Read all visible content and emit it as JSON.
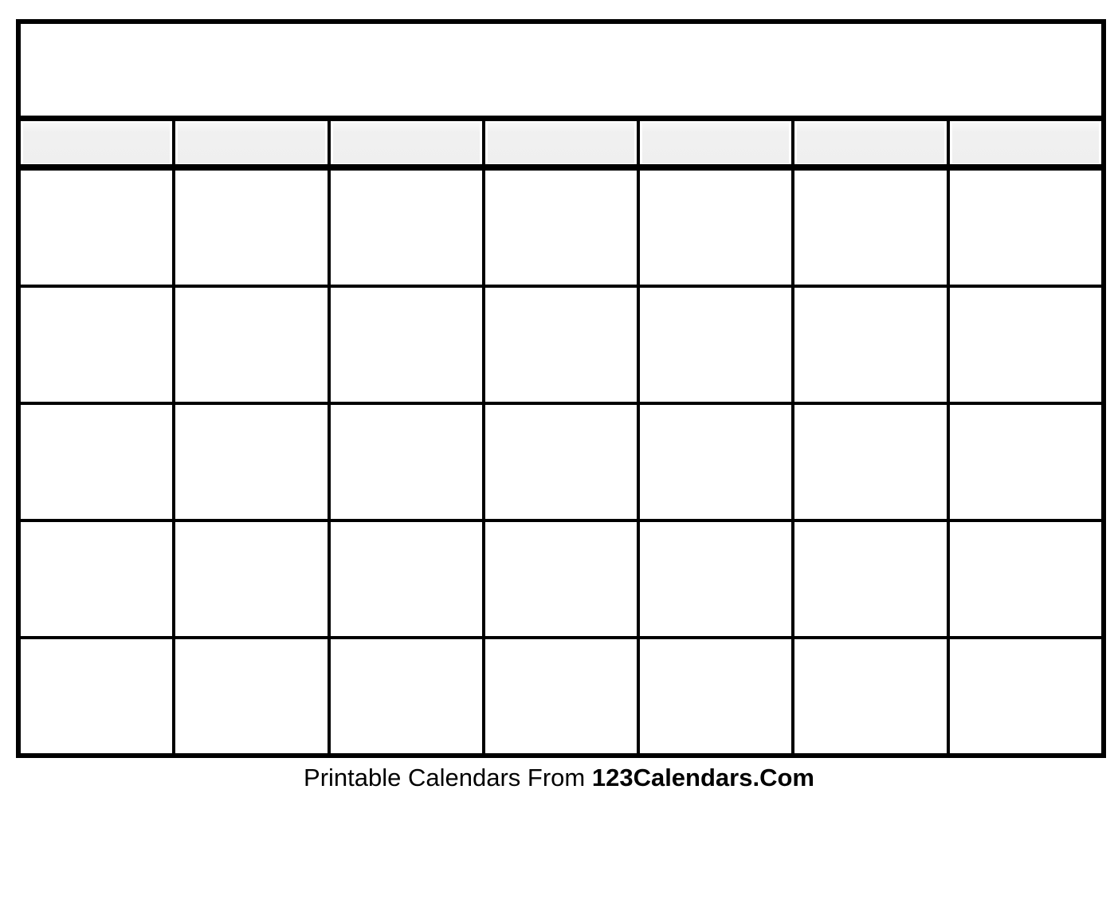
{
  "page": {
    "background_color": "#ffffff"
  },
  "calendar": {
    "border_color": "#000000",
    "title": {
      "text": ""
    },
    "header": {
      "background_color": "#f0f0f0",
      "cells": [
        "",
        "",
        "",
        "",
        "",
        "",
        ""
      ]
    },
    "grid": {
      "rows": 5,
      "columns": 7
    }
  },
  "footer": {
    "text_regular": "Printable Calendars From",
    "text_bold": "123Calendars.Com"
  }
}
